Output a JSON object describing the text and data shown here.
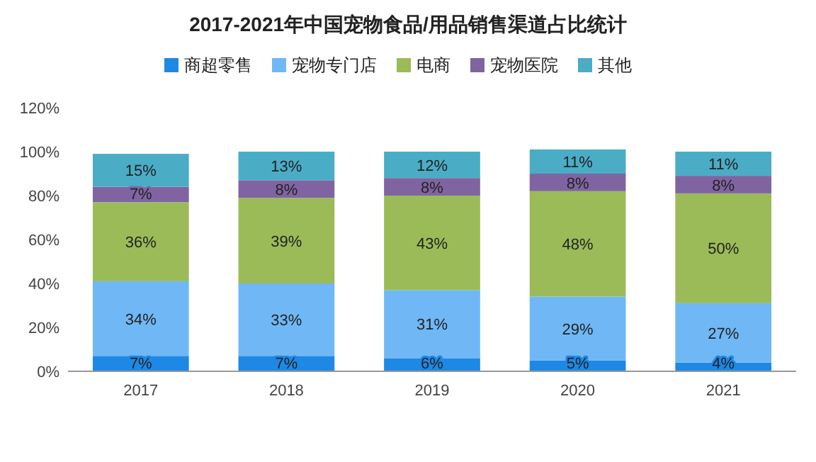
{
  "chart_data": {
    "type": "bar",
    "title": "2017-2021年中国宠物食品/用品销售渠道占比统计",
    "stacked": true,
    "legend": "top",
    "categories": [
      "2017",
      "2018",
      "2019",
      "2020",
      "2021"
    ],
    "ylim": [
      0,
      120
    ],
    "yticks": [
      {
        "value": 0,
        "label": "0%"
      },
      {
        "value": 20,
        "label": "20%"
      },
      {
        "value": 40,
        "label": "40%"
      },
      {
        "value": 60,
        "label": "60%"
      },
      {
        "value": 80,
        "label": "80%"
      },
      {
        "value": 100,
        "label": "100%"
      },
      {
        "value": 120,
        "label": "120%"
      }
    ],
    "series": [
      {
        "name": "商超零售",
        "color": "#1e88e5",
        "values": [
          7,
          7,
          6,
          5,
          4
        ],
        "value_labels": [
          "7%",
          "7%",
          "6%",
          "5%",
          "4%"
        ]
      },
      {
        "name": "宠物专门店",
        "color": "#6fb8f5",
        "values": [
          34,
          33,
          31,
          29,
          27
        ],
        "value_labels": [
          "34%",
          "33%",
          "31%",
          "29%",
          "27%"
        ]
      },
      {
        "name": "电商",
        "color": "#9bbb59",
        "values": [
          36,
          39,
          43,
          48,
          50
        ],
        "value_labels": [
          "36%",
          "39%",
          "43%",
          "48%",
          "50%"
        ]
      },
      {
        "name": "宠物医院",
        "color": "#8064a2",
        "values": [
          7,
          8,
          8,
          8,
          8
        ],
        "value_labels": [
          "7%",
          "8%",
          "8%",
          "8%",
          "8%"
        ]
      },
      {
        "name": "其他",
        "color": "#4bacc6",
        "values": [
          15,
          13,
          12,
          11,
          11
        ],
        "value_labels": [
          "15%",
          "13%",
          "12%",
          "11%",
          "11%"
        ]
      }
    ]
  }
}
